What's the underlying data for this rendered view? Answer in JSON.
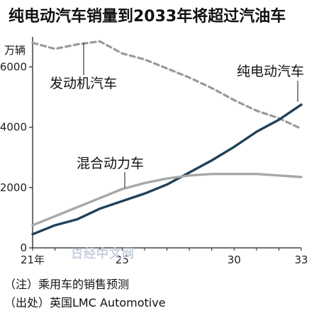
{
  "chart_data": {
    "type": "line",
    "title": "纯电动汽车销量到2033年将超过汽油车",
    "unit": "万辆",
    "x": [
      21,
      22,
      23,
      24,
      25,
      26,
      27,
      28,
      29,
      30,
      31,
      32,
      33
    ],
    "xticks": [
      {
        "x": 21,
        "label": "21年"
      },
      {
        "x": 25,
        "label": "25"
      },
      {
        "x": 30,
        "label": "30"
      },
      {
        "x": 33,
        "label": "33"
      }
    ],
    "ylim": [
      0,
      7000
    ],
    "yticks": [
      0,
      2000,
      4000,
      6000
    ],
    "series": [
      {
        "name": "发动机汽车",
        "style": "dashed",
        "color": "#9a9a9a",
        "values": [
          6800,
          6600,
          6750,
          6850,
          6450,
          6250,
          5950,
          5650,
          5300,
          4900,
          4550,
          4300,
          3950
        ]
      },
      {
        "name": "纯电动汽车",
        "style": "solid",
        "color": "#1f4159",
        "values": [
          450,
          750,
          950,
          1300,
          1550,
          1800,
          2100,
          2500,
          2900,
          3350,
          3850,
          4250,
          4750
        ]
      },
      {
        "name": "混合动力车",
        "style": "solid",
        "color": "#a8a8a8",
        "values": [
          750,
          1050,
          1350,
          1650,
          1950,
          2150,
          2300,
          2400,
          2450,
          2450,
          2450,
          2400,
          2350
        ]
      }
    ]
  },
  "watermark": "日经中文网",
  "notes": [
    "（注）乘用车的销售预测",
    "（出处）英国LMC Automotive"
  ]
}
